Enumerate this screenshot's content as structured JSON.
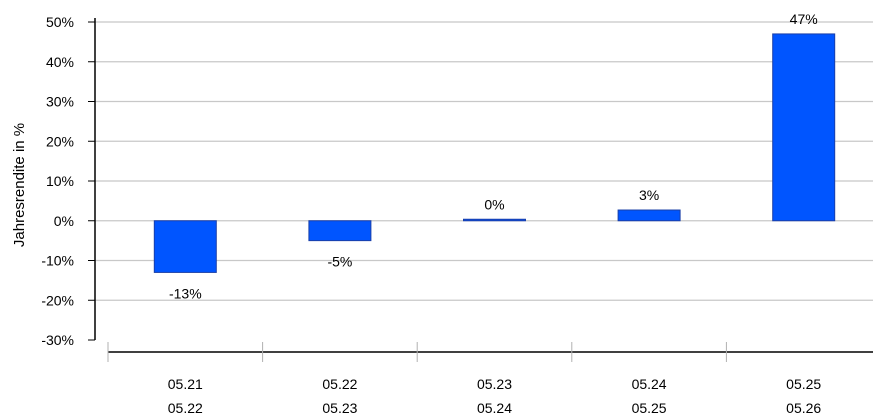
{
  "chart_data": {
    "type": "bar",
    "ylabel": "Jahresrendite in %",
    "ylim": [
      -30,
      50
    ],
    "yticks": [
      50,
      40,
      30,
      20,
      10,
      0,
      -10,
      -20,
      -30
    ],
    "ytick_labels": [
      "50%",
      "40%",
      "30%",
      "20%",
      "10%",
      "0%",
      "-10%",
      "-20%",
      "-30%"
    ],
    "categories": [
      {
        "line1": "05.21",
        "line2": "05.22"
      },
      {
        "line1": "05.22",
        "line2": "05.23"
      },
      {
        "line1": "05.23",
        "line2": "05.24"
      },
      {
        "line1": "05.24",
        "line2": "05.25"
      },
      {
        "line1": "05.25",
        "line2": "05.26"
      }
    ],
    "values": [
      -13,
      -5,
      0.3,
      2.7,
      47
    ],
    "data_labels": [
      "-13%",
      "-5%",
      "0%",
      "3%",
      "47%"
    ],
    "grid": true,
    "colors": {
      "bar_fill": "#0055ff",
      "bar_stroke": "#1a3fa8",
      "grid": "#c8c8c8",
      "axis": "#000000"
    }
  }
}
